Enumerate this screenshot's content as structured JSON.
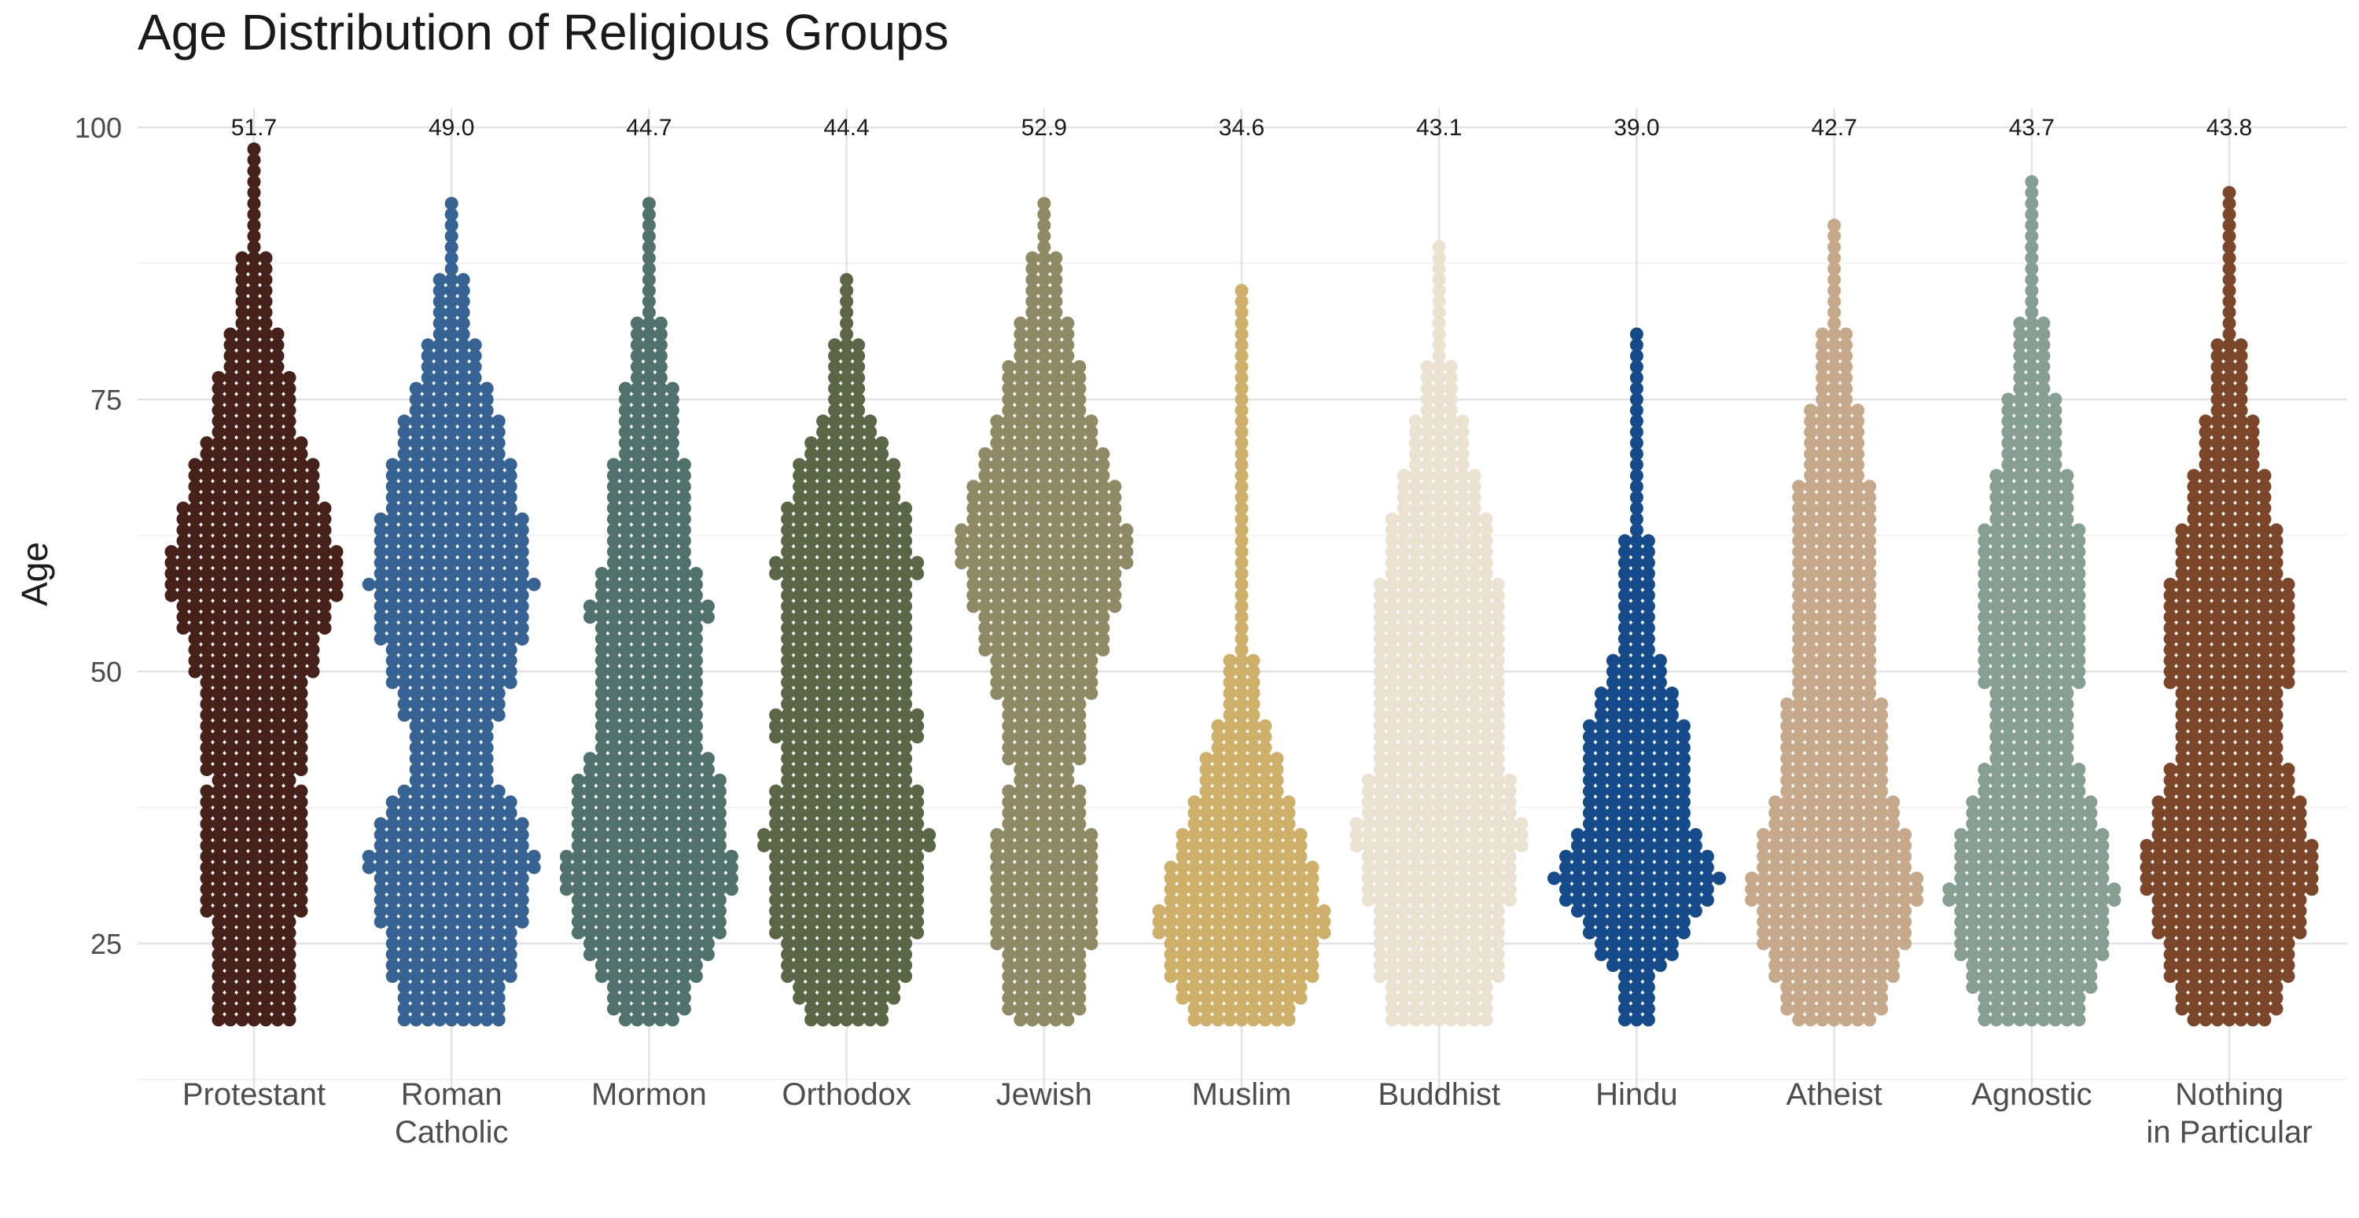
{
  "chart_data": {
    "type": "beeswarm",
    "title": "Age Distribution of Religious Groups",
    "xlabel": "",
    "ylabel": "Age",
    "ylim": [
      14,
      101
    ],
    "yticks": [
      25,
      50,
      75,
      100
    ],
    "grid": true,
    "legend": "none",
    "categories": [
      {
        "label": [
          "Protestant"
        ],
        "mean": "51.7",
        "color": "#45211a",
        "min": 18,
        "max": 98,
        "density": [
          [
            18,
            0.45
          ],
          [
            22,
            0.5
          ],
          [
            27,
            0.55
          ],
          [
            32,
            0.62
          ],
          [
            35,
            0.6
          ],
          [
            40,
            0.55
          ],
          [
            45,
            0.58
          ],
          [
            52,
            0.78
          ],
          [
            57,
            0.98
          ],
          [
            60,
            1.0
          ],
          [
            64,
            0.9
          ],
          [
            68,
            0.75
          ],
          [
            72,
            0.55
          ],
          [
            76,
            0.45
          ],
          [
            80,
            0.32
          ],
          [
            84,
            0.22
          ],
          [
            88,
            0.14
          ],
          [
            92,
            0.06
          ],
          [
            95,
            0.03
          ],
          [
            98,
            0.03
          ]
        ]
      },
      {
        "label": [
          "Roman",
          "Catholic"
        ],
        "mean": "49.0",
        "color": "#366394",
        "min": 18,
        "max": 93,
        "density": [
          [
            18,
            0.58
          ],
          [
            22,
            0.72
          ],
          [
            27,
            0.85
          ],
          [
            32,
            1.0
          ],
          [
            35,
            0.92
          ],
          [
            40,
            0.55
          ],
          [
            45,
            0.55
          ],
          [
            50,
            0.75
          ],
          [
            55,
            0.92
          ],
          [
            58,
            0.98
          ],
          [
            62,
            0.9
          ],
          [
            66,
            0.8
          ],
          [
            70,
            0.68
          ],
          [
            74,
            0.52
          ],
          [
            78,
            0.38
          ],
          [
            82,
            0.24
          ],
          [
            86,
            0.14
          ],
          [
            90,
            0.06
          ],
          [
            93,
            0.03
          ]
        ]
      },
      {
        "label": [
          "Mormon"
        ],
        "mean": "44.7",
        "color": "#51716c",
        "min": 18,
        "max": 93,
        "density": [
          [
            18,
            0.35
          ],
          [
            22,
            0.62
          ],
          [
            26,
            0.88
          ],
          [
            31,
            1.0
          ],
          [
            35,
            0.95
          ],
          [
            40,
            0.9
          ],
          [
            44,
            0.6
          ],
          [
            50,
            0.62
          ],
          [
            56,
            0.72
          ],
          [
            60,
            0.55
          ],
          [
            65,
            0.45
          ],
          [
            68,
            0.5
          ],
          [
            72,
            0.3
          ],
          [
            76,
            0.28
          ],
          [
            80,
            0.2
          ],
          [
            84,
            0.1
          ],
          [
            88,
            0.05
          ],
          [
            93,
            0.03
          ]
        ]
      },
      {
        "label": [
          "Orthodox"
        ],
        "mean": "44.4",
        "color": "#5a6645",
        "min": 18,
        "max": 86,
        "density": [
          [
            18,
            0.5
          ],
          [
            22,
            0.7
          ],
          [
            27,
            0.88
          ],
          [
            31,
            0.92
          ],
          [
            35,
            1.0
          ],
          [
            40,
            0.8
          ],
          [
            45,
            0.85
          ],
          [
            50,
            0.78
          ],
          [
            55,
            0.8
          ],
          [
            60,
            0.85
          ],
          [
            65,
            0.7
          ],
          [
            70,
            0.55
          ],
          [
            73,
            0.3
          ],
          [
            77,
            0.2
          ],
          [
            81,
            0.12
          ],
          [
            86,
            0.04
          ]
        ]
      },
      {
        "label": [
          "Jewish"
        ],
        "mean": "52.9",
        "color": "#8f8a65",
        "min": 18,
        "max": 93,
        "density": [
          [
            18,
            0.4
          ],
          [
            22,
            0.5
          ],
          [
            27,
            0.6
          ],
          [
            32,
            0.62
          ],
          [
            36,
            0.55
          ],
          [
            40,
            0.4
          ],
          [
            45,
            0.45
          ],
          [
            50,
            0.65
          ],
          [
            55,
            0.8
          ],
          [
            60,
            0.98
          ],
          [
            63,
            1.0
          ],
          [
            67,
            0.85
          ],
          [
            72,
            0.62
          ],
          [
            76,
            0.48
          ],
          [
            80,
            0.36
          ],
          [
            84,
            0.25
          ],
          [
            88,
            0.15
          ],
          [
            93,
            0.05
          ]
        ]
      },
      {
        "label": [
          "Muslim"
        ],
        "mean": "34.6",
        "color": "#cfb06a",
        "min": 18,
        "max": 85,
        "density": [
          [
            18,
            0.6
          ],
          [
            22,
            0.85
          ],
          [
            26,
            1.0
          ],
          [
            30,
            0.95
          ],
          [
            34,
            0.75
          ],
          [
            38,
            0.58
          ],
          [
            42,
            0.42
          ],
          [
            46,
            0.25
          ],
          [
            50,
            0.15
          ],
          [
            55,
            0.1
          ],
          [
            60,
            0.12
          ],
          [
            65,
            0.06
          ],
          [
            70,
            0.05
          ],
          [
            75,
            0.04
          ],
          [
            80,
            0.03
          ],
          [
            85,
            0.02
          ]
        ]
      },
      {
        "label": [
          "Buddhist"
        ],
        "mean": "43.1",
        "color": "#ebe2d2",
        "min": 18,
        "max": 89,
        "density": [
          [
            18,
            0.62
          ],
          [
            22,
            0.7
          ],
          [
            26,
            0.78
          ],
          [
            30,
            0.88
          ],
          [
            34,
            1.0
          ],
          [
            38,
            0.95
          ],
          [
            42,
            0.75
          ],
          [
            46,
            0.7
          ],
          [
            50,
            0.7
          ],
          [
            55,
            0.72
          ],
          [
            60,
            0.68
          ],
          [
            65,
            0.55
          ],
          [
            70,
            0.38
          ],
          [
            74,
            0.25
          ],
          [
            78,
            0.15
          ],
          [
            82,
            0.08
          ],
          [
            86,
            0.04
          ],
          [
            89,
            0.02
          ]
        ]
      },
      {
        "label": [
          "Hindu"
        ],
        "mean": "39.0",
        "color": "#154b8a",
        "min": 18,
        "max": 81,
        "density": [
          [
            18,
            0.18
          ],
          [
            22,
            0.2
          ],
          [
            25,
            0.55
          ],
          [
            28,
            0.75
          ],
          [
            31,
            1.0
          ],
          [
            34,
            0.8
          ],
          [
            37,
            0.6
          ],
          [
            42,
            0.58
          ],
          [
            46,
            0.55
          ],
          [
            50,
            0.3
          ],
          [
            55,
            0.2
          ],
          [
            60,
            0.16
          ],
          [
            65,
            0.12
          ],
          [
            70,
            0.1
          ],
          [
            75,
            0.06
          ],
          [
            81,
            0.03
          ]
        ]
      },
      {
        "label": [
          "Atheist"
        ],
        "mean": "42.7",
        "color": "#c6a98b",
        "min": 18,
        "max": 91,
        "density": [
          [
            18,
            0.55
          ],
          [
            22,
            0.72
          ],
          [
            26,
            0.9
          ],
          [
            30,
            1.0
          ],
          [
            34,
            0.92
          ],
          [
            38,
            0.72
          ],
          [
            42,
            0.6
          ],
          [
            48,
            0.55
          ],
          [
            54,
            0.55
          ],
          [
            58,
            0.55
          ],
          [
            62,
            0.5
          ],
          [
            67,
            0.42
          ],
          [
            72,
            0.34
          ],
          [
            76,
            0.25
          ],
          [
            80,
            0.17
          ],
          [
            84,
            0.1
          ],
          [
            88,
            0.05
          ],
          [
            91,
            0.02
          ]
        ]
      },
      {
        "label": [
          "Agnostic"
        ],
        "mean": "43.7",
        "color": "#879e93",
        "min": 18,
        "max": 95,
        "density": [
          [
            18,
            0.6
          ],
          [
            22,
            0.78
          ],
          [
            26,
            0.92
          ],
          [
            30,
            1.0
          ],
          [
            34,
            0.88
          ],
          [
            38,
            0.7
          ],
          [
            42,
            0.55
          ],
          [
            48,
            0.55
          ],
          [
            54,
            0.62
          ],
          [
            58,
            0.68
          ],
          [
            62,
            0.6
          ],
          [
            66,
            0.48
          ],
          [
            70,
            0.38
          ],
          [
            75,
            0.28
          ],
          [
            80,
            0.18
          ],
          [
            84,
            0.1
          ],
          [
            88,
            0.06
          ],
          [
            92,
            0.03
          ],
          [
            95,
            0.02
          ]
        ]
      },
      {
        "label": [
          "Nothing",
          "in Particular"
        ],
        "mean": "43.8",
        "color": "#7b4629",
        "min": 18,
        "max": 94,
        "density": [
          [
            18,
            0.55
          ],
          [
            22,
            0.72
          ],
          [
            26,
            0.85
          ],
          [
            30,
            0.98
          ],
          [
            33,
            1.0
          ],
          [
            37,
            0.9
          ],
          [
            42,
            0.68
          ],
          [
            46,
            0.62
          ],
          [
            50,
            0.75
          ],
          [
            54,
            0.82
          ],
          [
            58,
            0.7
          ],
          [
            62,
            0.6
          ],
          [
            66,
            0.48
          ],
          [
            70,
            0.36
          ],
          [
            74,
            0.26
          ],
          [
            78,
            0.18
          ],
          [
            82,
            0.12
          ],
          [
            86,
            0.07
          ],
          [
            90,
            0.04
          ],
          [
            94,
            0.02
          ]
        ]
      }
    ]
  }
}
